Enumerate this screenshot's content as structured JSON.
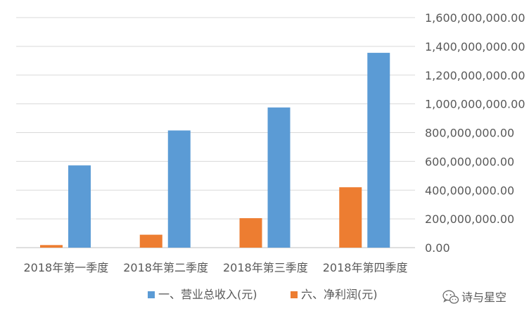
{
  "chart_data": {
    "type": "bar",
    "categories": [
      "2018年第一季度",
      "2018年第二季度",
      "2018年第三季度",
      "2018年第四季度"
    ],
    "series": [
      {
        "name": "六、净利润(元)",
        "color": "#ED7D31",
        "values": [
          18000000,
          90000000,
          205000000,
          420000000
        ]
      },
      {
        "name": "一、营业总收入(元)",
        "color": "#5B9BD5",
        "values": [
          572000000,
          815000000,
          975000000,
          1355000000
        ]
      }
    ],
    "legend_order": [
      1,
      0
    ],
    "ylim": [
      0,
      1600000000
    ],
    "yticks": [
      "0.00",
      "200,000,000.00",
      "400,000,000.00",
      "600,000,000.00",
      "800,000,000.00",
      "1,000,000,000.00",
      "1,200,000,000.00",
      "1,400,000,000.00",
      "1,600,000,000.00"
    ],
    "y_axis_side": "right",
    "grid": true,
    "legend_position": "bottom",
    "title": "",
    "xlabel": "",
    "ylabel": ""
  },
  "watermark": {
    "text": "诗与星空",
    "icon": "wechat-icon"
  }
}
